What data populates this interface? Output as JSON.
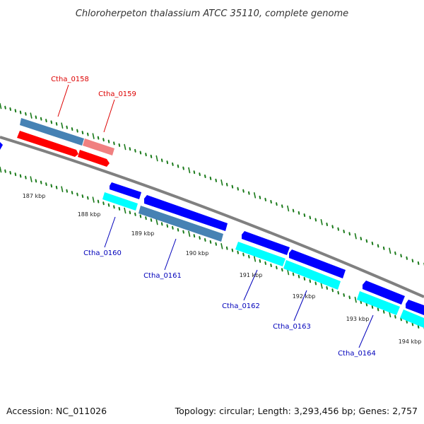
{
  "title": "Chloroherpeton thalassium ATCC 35110, complete genome",
  "footer": {
    "accession": "Accession: NC_011026",
    "summary": "Topology: circular; Length: 3,293,456 bp; Genes: 2,757"
  },
  "scale": {
    "tick_labels": [
      "187 kbp",
      "188 kbp",
      "189 kbp",
      "190 kbp",
      "191 kbp",
      "192 kbp",
      "193 kbp",
      "194 kbp"
    ]
  },
  "genes": [
    {
      "name": "Ctha_0158",
      "strand": "reverse"
    },
    {
      "name": "Ctha_0159",
      "strand": "reverse"
    },
    {
      "name": "Ctha_0160",
      "strand": "forward"
    },
    {
      "name": "Ctha_0161",
      "strand": "forward"
    },
    {
      "name": "Ctha_0162",
      "strand": "forward"
    },
    {
      "name": "Ctha_0163",
      "strand": "forward"
    },
    {
      "name": "Ctha_0164",
      "strand": "forward"
    }
  ],
  "colors": {
    "backbone": "#808080",
    "tick": "#1a7a1a",
    "reverse_cds": "#ff0000",
    "reverse_cds_light": "#f08080",
    "reverse_gene": "#4682b4",
    "reverse_label": "#dd0000",
    "forward_cds": "#0000ff",
    "forward_gene": "#00ffff",
    "forward_gene_alt": "#4682b4",
    "forward_label": "#0000bb"
  }
}
